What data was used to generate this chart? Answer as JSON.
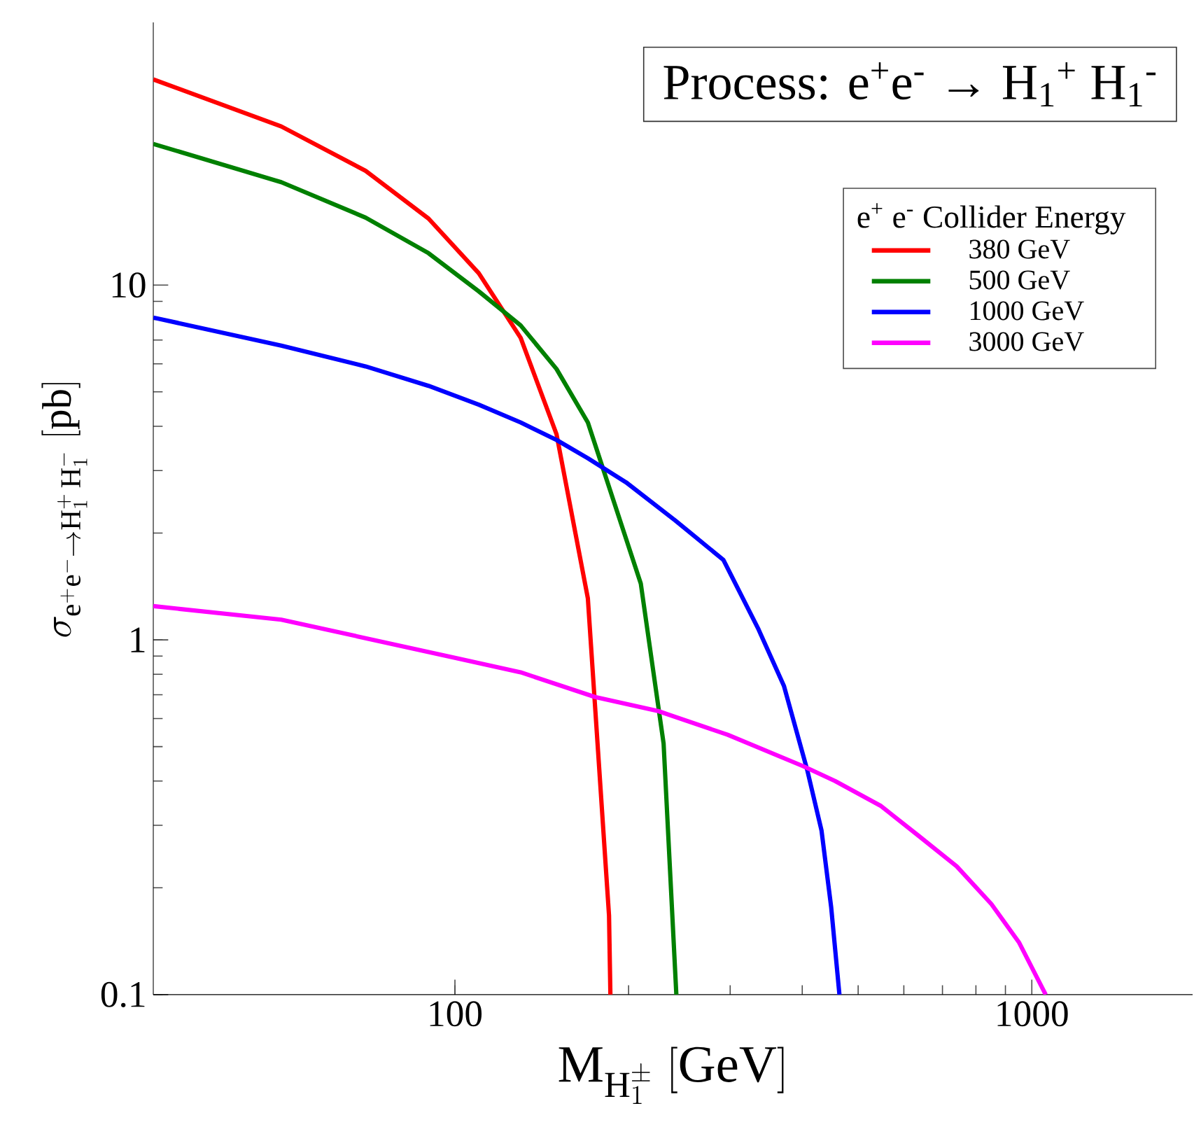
{
  "chart_data": {
    "type": "line",
    "title": "Process: e$^{+}$e$^{-}$ → H$_{1}$$^{+}$ H$_{1}$$^{-}$",
    "xlabel": "\\mathrm{M}_{\\mathrm{H}_1^{\\pm}}\\ [\\mathrm{GeV}]",
    "ylabel": "\\sigma_{\\mathrm{e}^{+}\\mathrm{e}^{-} \\to \\mathrm{H}_1^{+}\\,\\mathrm{H}_1^{-}}\\ [\\mathrm{pb}]",
    "legend_title": "e$^{+}$ e$^{-}$ Collider Energy",
    "log": "xy",
    "xlim": [
      30,
      1900
    ],
    "ylim": [
      0.1,
      55
    ],
    "xticks": [
      100,
      1000
    ],
    "yticks": [
      0.1,
      1,
      10
    ],
    "legend": "top right",
    "series": [
      {
        "name": "380 GeV",
        "color": "#ff0000",
        "x": [
          30,
          50,
          70,
          90,
          110,
          130,
          150,
          170,
          185,
          186
        ],
        "values": [
          38,
          28,
          21,
          15.4,
          10.8,
          7.1,
          3.8,
          1.31,
          0.167,
          0.1
        ]
      },
      {
        "name": "500 GeV",
        "color": "#008000",
        "x": [
          30,
          50,
          70,
          90,
          110,
          130,
          150,
          170,
          210,
          230,
          242
        ],
        "values": [
          25,
          19.5,
          15.5,
          12.3,
          9.6,
          7.7,
          5.8,
          4.1,
          1.44,
          0.51,
          0.1
        ]
      },
      {
        "name": "1000 GeV",
        "color": "#0000ff",
        "x": [
          30,
          50,
          70,
          90,
          110,
          130,
          150,
          170,
          198,
          241,
          292,
          336,
          372,
          408,
          432,
          449,
          464
        ],
        "values": [
          8.1,
          6.75,
          5.9,
          5.2,
          4.6,
          4.1,
          3.66,
          3.25,
          2.78,
          2.17,
          1.68,
          1.07,
          0.74,
          0.43,
          0.29,
          0.176,
          0.1
        ]
      },
      {
        "name": "3000 GeV",
        "color": "#ff00ff",
        "x": [
          30,
          50,
          100,
          130,
          175,
          225,
          297,
          402,
          456,
          548,
          637,
          741,
          851,
          951,
          1057
        ],
        "values": [
          1.245,
          1.14,
          0.89,
          0.81,
          0.69,
          0.63,
          0.54,
          0.44,
          0.4,
          0.34,
          0.28,
          0.23,
          0.18,
          0.14,
          0.1
        ]
      }
    ]
  }
}
